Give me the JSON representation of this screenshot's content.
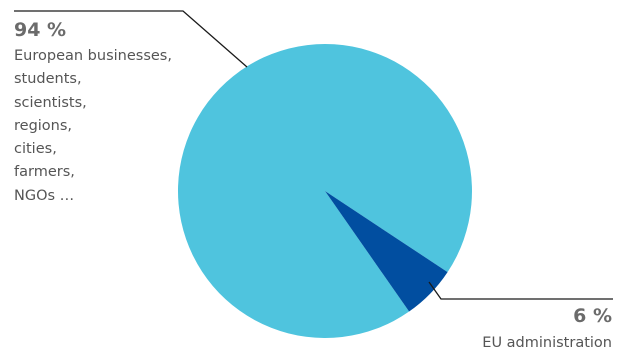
{
  "chart_data": {
    "type": "pie",
    "title": "",
    "slices": [
      {
        "label": "European businesses, students, scientists, regions, cities, farmers, NGOs …",
        "label_lines": [
          "European businesses,",
          "students,",
          "scientists,",
          "regions,",
          "cities,",
          "farmers,",
          "NGOs …"
        ],
        "value": 94,
        "value_label": "94 %",
        "color": "#4fc4de"
      },
      {
        "label": "EU administration",
        "label_lines": [
          "EU administration"
        ],
        "value": 6,
        "value_label": "6 %",
        "color": "#014ea0"
      }
    ],
    "leader_line_color": "#1a1a1a"
  }
}
